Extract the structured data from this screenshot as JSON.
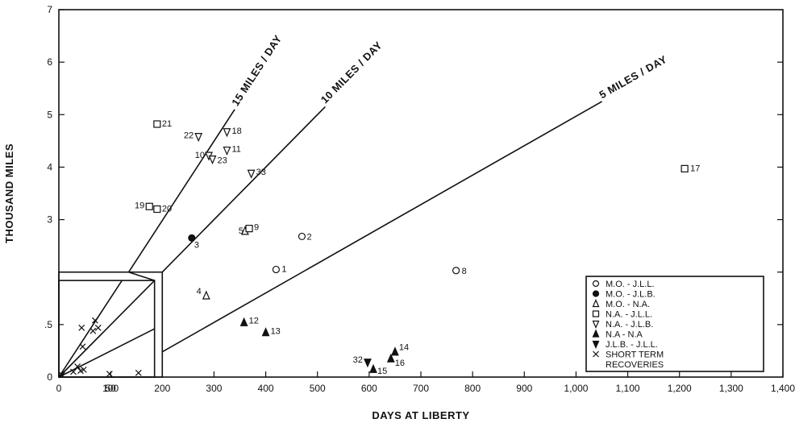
{
  "chart_data": {
    "type": "scatter",
    "xlabel": "DAYS AT LIBERTY",
    "ylabel": "THOUSAND MILES",
    "xlim": [
      0,
      1400
    ],
    "ylim": [
      0,
      7
    ],
    "x_ticks": [
      {
        "v": 0,
        "label": "0"
      },
      {
        "v": 100,
        "label": "100"
      },
      {
        "v": 200,
        "label": "200"
      },
      {
        "v": 300,
        "label": "300"
      },
      {
        "v": 400,
        "label": "400"
      },
      {
        "v": 500,
        "label": "500"
      },
      {
        "v": 600,
        "label": "600"
      },
      {
        "v": 700,
        "label": "700"
      },
      {
        "v": 800,
        "label": "800"
      },
      {
        "v": 900,
        "label": "900"
      },
      {
        "v": 1000,
        "label": "1,000"
      },
      {
        "v": 1100,
        "label": "1,100"
      },
      {
        "v": 1200,
        "label": "1,200"
      },
      {
        "v": 1300,
        "label": "1,300"
      },
      {
        "v": 1400,
        "label": "1,400"
      }
    ],
    "y_ticks": [
      {
        "v": 0,
        "label": "0"
      },
      {
        "v": 3,
        "label": "3"
      },
      {
        "v": 4,
        "label": "4"
      },
      {
        "v": 5,
        "label": "5"
      },
      {
        "v": 6,
        "label": "6"
      },
      {
        "v": 7,
        "label": "7"
      }
    ],
    "inset": {
      "xlim": [
        0,
        100
      ],
      "ylim": [
        0,
        1
      ],
      "x_ticks": [
        {
          "v": 50,
          "label": "50"
        }
      ],
      "y_ticks": [
        {
          "v": 0.5,
          "label": ".5"
        }
      ]
    },
    "rate_lines": [
      {
        "label": "5 MILES / DAY",
        "rate": 5
      },
      {
        "label": "10 MILES / DAY",
        "rate": 10
      },
      {
        "label": "15 MILES / DAY",
        "rate": 15
      }
    ],
    "legend": [
      {
        "marker": "circle-open",
        "label": "M.O. - J.L.L."
      },
      {
        "marker": "circle-filled",
        "label": "M.O. - J.L.B."
      },
      {
        "marker": "triangle-open",
        "label": "M.O. - N.A."
      },
      {
        "marker": "square-open",
        "label": "N.A. - J.L.L."
      },
      {
        "marker": "triangle-down-open",
        "label": "N.A. - J.L.B."
      },
      {
        "marker": "triangle-filled",
        "label": "N.A - N.A"
      },
      {
        "marker": "triangle-down-filled",
        "label": "J.L.B. - J.L.L."
      },
      {
        "marker": "x",
        "label": "SHORT TERM"
      },
      {
        "marker": "none",
        "label": "RECOVERIES"
      }
    ],
    "points": [
      {
        "label": "1",
        "marker": "circle-open",
        "x": 420,
        "y": 2.05
      },
      {
        "label": "2",
        "marker": "circle-open",
        "x": 470,
        "y": 2.68
      },
      {
        "label": "8",
        "marker": "circle-open",
        "x": 768,
        "y": 2.03
      },
      {
        "label": "3",
        "marker": "circle-filled",
        "x": 257,
        "y": 2.65
      },
      {
        "label": "4",
        "marker": "triangle-open",
        "x": 285,
        "y": 1.55
      },
      {
        "label": "5",
        "marker": "triangle-open",
        "x": 360,
        "y": 2.78
      },
      {
        "label": "21",
        "marker": "square-open",
        "x": 190,
        "y": 4.82
      },
      {
        "label": "17",
        "marker": "square-open",
        "x": 1210,
        "y": 3.97
      },
      {
        "label": "19",
        "marker": "square-open",
        "x": 175,
        "y": 3.25
      },
      {
        "label": "20",
        "marker": "square-open",
        "x": 190,
        "y": 3.2
      },
      {
        "label": "9",
        "marker": "square-open",
        "x": 368,
        "y": 2.83
      },
      {
        "label": "22",
        "marker": "triangle-down-open",
        "x": 270,
        "y": 4.58
      },
      {
        "label": "18",
        "marker": "triangle-down-open",
        "x": 325,
        "y": 4.67
      },
      {
        "label": "10",
        "marker": "triangle-down-open",
        "x": 290,
        "y": 4.22
      },
      {
        "label": "23",
        "marker": "triangle-down-open",
        "x": 297,
        "y": 4.15
      },
      {
        "label": "11",
        "marker": "triangle-down-open",
        "x": 325,
        "y": 4.32
      },
      {
        "label": "33",
        "marker": "triangle-down-open",
        "x": 372,
        "y": 3.88
      },
      {
        "label": "12",
        "marker": "triangle-filled",
        "x": 358,
        "y": 1.04
      },
      {
        "label": "13",
        "marker": "triangle-filled",
        "x": 400,
        "y": 0.85
      },
      {
        "label": "14",
        "marker": "triangle-filled",
        "x": 650,
        "y": 0.48
      },
      {
        "label": "16",
        "marker": "triangle-filled",
        "x": 642,
        "y": 0.35
      },
      {
        "label": "15",
        "marker": "triangle-filled",
        "x": 608,
        "y": 0.15
      },
      {
        "label": "32",
        "marker": "triangle-down-filled",
        "x": 597,
        "y": 0.28
      }
    ],
    "inset_points": [
      {
        "marker": "x",
        "x": 3,
        "y": 0.02
      },
      {
        "marker": "x",
        "x": 14,
        "y": 0.05
      },
      {
        "marker": "x",
        "x": 18,
        "y": 0.1
      },
      {
        "marker": "x",
        "x": 21,
        "y": 0.06
      },
      {
        "marker": "x",
        "x": 24,
        "y": 0.07
      },
      {
        "marker": "x",
        "x": 22,
        "y": 0.47
      },
      {
        "marker": "x",
        "x": 23,
        "y": 0.29
      },
      {
        "marker": "x",
        "x": 33,
        "y": 0.44
      },
      {
        "marker": "x",
        "x": 35,
        "y": 0.54
      },
      {
        "marker": "x",
        "x": 38,
        "y": 0.47
      },
      {
        "marker": "x",
        "x": 49,
        "y": 0.03
      },
      {
        "marker": "x",
        "x": 77,
        "y": 0.04
      }
    ]
  }
}
